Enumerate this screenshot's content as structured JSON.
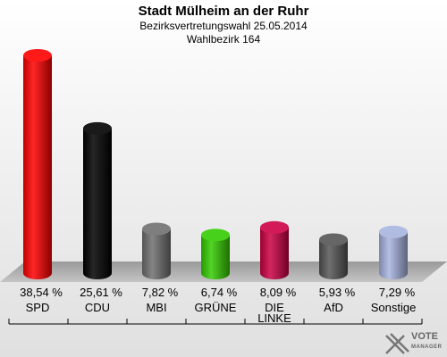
{
  "header": {
    "title": "Stadt Mülheim an der Ruhr",
    "subtitle1": "Bezirksvertretungswahl 25.05.2014",
    "subtitle2": "Wahlbezirk 164"
  },
  "logo": {
    "icon": "vote-manager-logo-icon",
    "text_main": "VOTE",
    "text_sub": "MANAGER"
  },
  "chart_data": {
    "type": "bar",
    "title": "Stadt Mülheim an der Ruhr",
    "subtitle": "Bezirksvertretungswahl 25.05.2014 · Wahlbezirk 164",
    "categories": [
      "SPD",
      "CDU",
      "MBI",
      "GRÜNE",
      "DIE LINKE",
      "AfD",
      "Sonstige"
    ],
    "values": [
      38.54,
      25.61,
      7.82,
      6.74,
      8.09,
      5.93,
      7.29
    ],
    "value_labels": [
      "38,54 %",
      "25,61 %",
      "7,82 %",
      "6,74 %",
      "8,09 %",
      "5,93 %",
      "7,29 %"
    ],
    "category_labels": [
      [
        "SPD"
      ],
      [
        "CDU"
      ],
      [
        "MBI"
      ],
      [
        "GRÜNE"
      ],
      [
        "DIE",
        "LINKE"
      ],
      [
        "AfD"
      ],
      [
        "Sonstige"
      ]
    ],
    "colors": [
      "#ff0000",
      "#000000",
      "#707070",
      "#33cc00",
      "#cc0044",
      "#555555",
      "#a8b4e0"
    ],
    "ylim": [
      0,
      40
    ],
    "xlabel": "",
    "ylabel": "",
    "grid": false,
    "legend": "none"
  }
}
